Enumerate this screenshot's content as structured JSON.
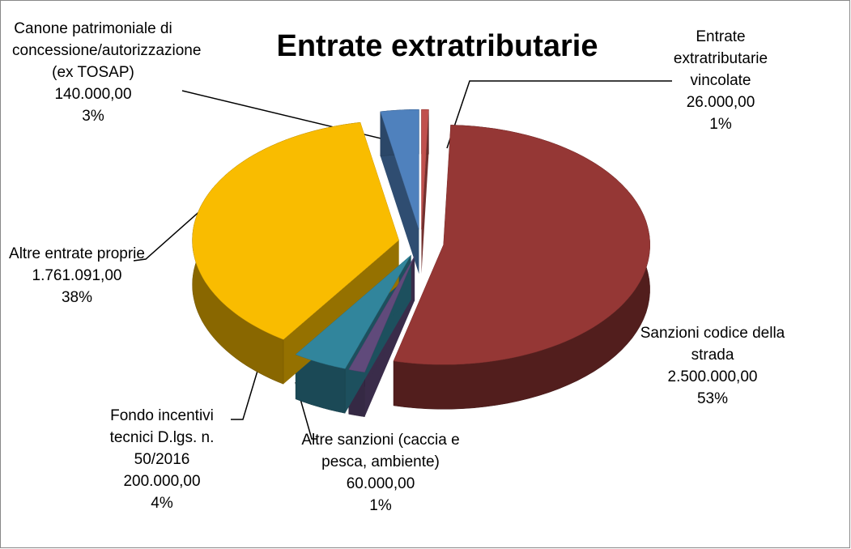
{
  "chart_data": {
    "type": "pie",
    "title": "Entrate extratributarie",
    "categories": [
      "Entrate extratributarie vincolate",
      "Sanzioni codice della strada",
      "Altre sanzioni (caccia e pesca, ambiente)",
      "Fondo incentivi tecnici D.lgs. n. 50/2016",
      "Altre entrate proprie",
      "Canone patrimoniale di concessione/autorizzazione (ex TOSAP)"
    ],
    "values": [
      26000,
      2500000,
      60000,
      200000,
      1761091,
      140000
    ],
    "value_labels": [
      "26.000,00",
      "2.500.000,00",
      "60.000,00",
      "200.000,00",
      "1.761.091,00",
      "140.000,00"
    ],
    "percent_labels": [
      "1%",
      "53%",
      "1%",
      "4%",
      "38%",
      "3%"
    ],
    "colors": [
      "#c0504d",
      "#953735",
      "#604a7b",
      "#31859c",
      "#f9bc00",
      "#4f81bd"
    ]
  }
}
